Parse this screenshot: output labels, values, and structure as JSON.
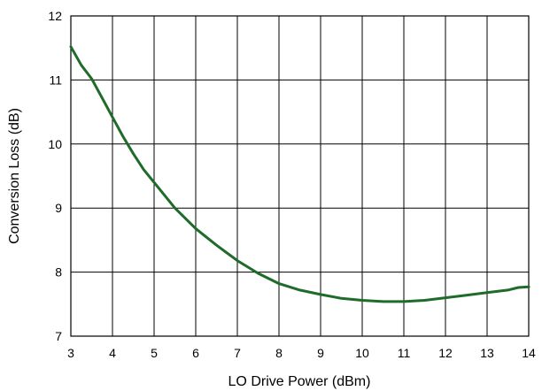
{
  "chart_data": {
    "type": "line",
    "title": "",
    "xlabel": "LO Drive Power (dBm)",
    "ylabel": "Conversion Loss (dB)",
    "xlim": [
      3,
      14
    ],
    "ylim": [
      7,
      12
    ],
    "xticks": [
      3,
      4,
      5,
      6,
      7,
      8,
      9,
      10,
      11,
      12,
      13,
      14
    ],
    "yticks": [
      7,
      8,
      9,
      10,
      11,
      12
    ],
    "grid": true,
    "series": [
      {
        "color": "#1e6b2a",
        "x": [
          3.0,
          3.25,
          3.5,
          3.75,
          4.0,
          4.25,
          4.5,
          4.75,
          5.0,
          5.5,
          6.0,
          6.5,
          7.0,
          7.5,
          8.0,
          8.5,
          9.0,
          9.5,
          10.0,
          10.5,
          11.0,
          11.5,
          12.0,
          12.5,
          13.0,
          13.5,
          13.75,
          14.0
        ],
        "y": [
          11.52,
          11.23,
          11.02,
          10.72,
          10.42,
          10.12,
          9.85,
          9.6,
          9.4,
          9.0,
          8.68,
          8.42,
          8.18,
          7.98,
          7.82,
          7.72,
          7.65,
          7.59,
          7.56,
          7.54,
          7.54,
          7.56,
          7.6,
          7.64,
          7.68,
          7.72,
          7.76,
          7.77
        ]
      }
    ]
  }
}
